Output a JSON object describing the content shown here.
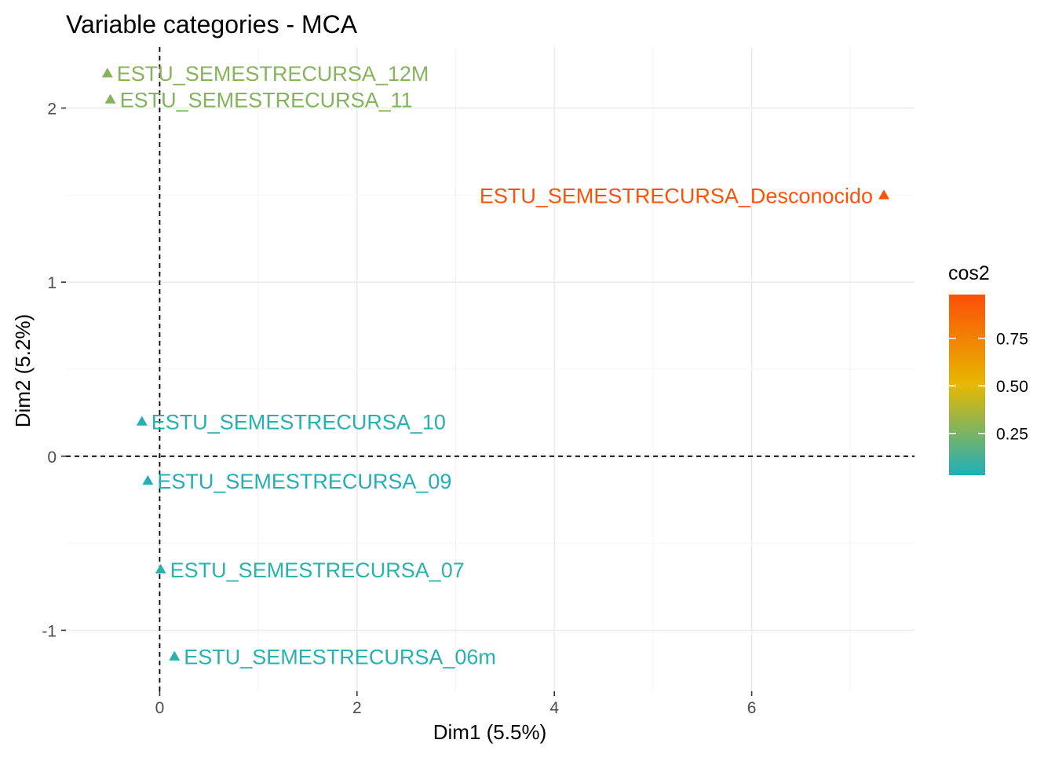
{
  "chart_data": {
    "type": "scatter",
    "title": "Variable categories - MCA",
    "xlabel": "Dim1 (5.5%)",
    "ylabel": "Dim2 (5.2%)",
    "xlim": [
      -0.95,
      7.65
    ],
    "ylim": [
      -1.35,
      2.35
    ],
    "x_ticks": [
      0,
      2,
      4,
      6
    ],
    "x_tick_labels": [
      "0",
      "2",
      "4",
      "6"
    ],
    "y_ticks": [
      -1,
      0,
      1,
      2
    ],
    "y_tick_labels": [
      "-1",
      "0",
      "1",
      "2"
    ],
    "grid": true,
    "reference_lines": {
      "x": 0,
      "y": 0,
      "style": "dashed"
    },
    "color_scale": {
      "title": "cos2",
      "min": 0.03,
      "max": 0.98,
      "tick_values": [
        0.25,
        0.5,
        0.75
      ],
      "tick_labels": [
        "0.25",
        "0.50",
        "0.75"
      ],
      "gradient": [
        "#1DAFBC",
        "#E7B800",
        "#FC4E07"
      ],
      "legend_position": "right"
    },
    "points": [
      {
        "label": "ESTU_SEMESTRECURSA_12M",
        "x": -0.53,
        "y": 2.2,
        "cos2": 0.28
      },
      {
        "label": "ESTU_SEMESTRECURSA_11",
        "x": -0.5,
        "y": 2.05,
        "cos2": 0.27
      },
      {
        "label": "ESTU_SEMESTRECURSA_Desconocido",
        "x": 7.34,
        "y": 1.5,
        "cos2": 0.96
      },
      {
        "label": "ESTU_SEMESTRECURSA_10",
        "x": -0.18,
        "y": 0.2,
        "cos2": 0.05
      },
      {
        "label": "ESTU_SEMESTRECURSA_09",
        "x": -0.12,
        "y": -0.14,
        "cos2": 0.04
      },
      {
        "label": "ESTU_SEMESTRECURSA_07",
        "x": 0.01,
        "y": -0.65,
        "cos2": 0.07
      },
      {
        "label": "ESTU_SEMESTRECURSA_06m",
        "x": 0.15,
        "y": -1.15,
        "cos2": 0.06
      }
    ]
  }
}
